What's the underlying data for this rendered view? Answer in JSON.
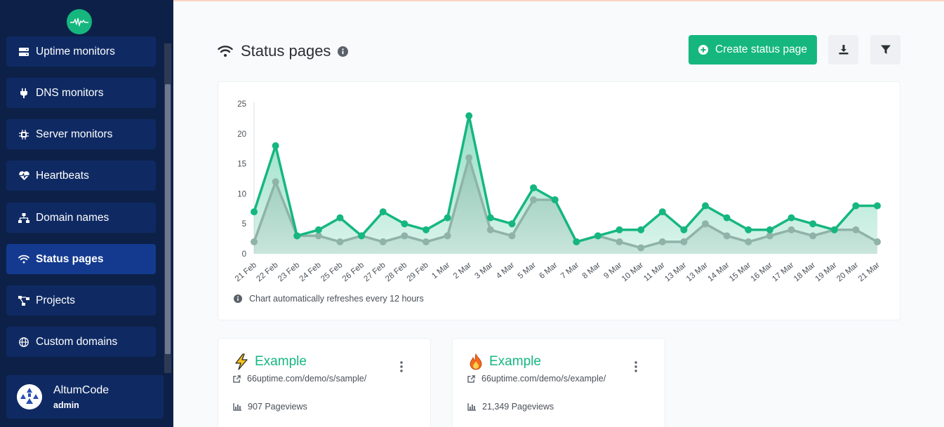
{
  "sidebar": {
    "items": [
      {
        "label": "Uptime monitors",
        "icon": "server-icon",
        "active": false
      },
      {
        "label": "DNS monitors",
        "icon": "plug-icon",
        "active": false
      },
      {
        "label": "Server monitors",
        "icon": "microchip-icon",
        "active": false
      },
      {
        "label": "Heartbeats",
        "icon": "heart-pulse-icon",
        "active": false
      },
      {
        "label": "Domain names",
        "icon": "network-icon",
        "active": false
      },
      {
        "label": "Status pages",
        "icon": "wifi-icon",
        "active": true
      },
      {
        "label": "Projects",
        "icon": "project-diagram-icon",
        "active": false
      },
      {
        "label": "Custom domains",
        "icon": "globe-icon",
        "active": false
      }
    ],
    "user": {
      "name": "AltumCode",
      "role": "admin"
    }
  },
  "header": {
    "title": "Status pages",
    "create_label": "Create status page"
  },
  "chart_note": "Chart automatically refreshes every 12 hours",
  "chart_data": {
    "type": "area",
    "categories": [
      "21 Feb",
      "22 Feb",
      "23 Feb",
      "24 Feb",
      "25 Feb",
      "26 Feb",
      "27 Feb",
      "28 Feb",
      "29 Feb",
      "1 Mar",
      "2 Mar",
      "3 Mar",
      "4 Mar",
      "5 Mar",
      "6 Mar",
      "7 Mar",
      "8 Mar",
      "9 Mar",
      "10 Mar",
      "11 Mar",
      "13 Mar",
      "13 Mar",
      "14 Mar",
      "15 Mar",
      "16 Mar",
      "17 Mar",
      "18 Mar",
      "19 Mar",
      "20 Mar",
      "21 Mar"
    ],
    "series": [
      {
        "values": [
          7,
          18,
          3,
          4,
          6,
          3,
          7,
          5,
          4,
          6,
          23,
          6,
          5,
          11,
          9,
          2,
          3,
          4,
          4,
          7,
          4,
          8,
          6,
          4,
          4,
          6,
          5,
          4,
          8,
          8
        ],
        "color": "#15b77f"
      },
      {
        "values": [
          2,
          12,
          3,
          3,
          2,
          3,
          2,
          3,
          2,
          3,
          16,
          4,
          3,
          9,
          9,
          2,
          3,
          2,
          1,
          2,
          2,
          5,
          3,
          2,
          3,
          4,
          3,
          4,
          4,
          2
        ],
        "color": "#8fb3a8"
      }
    ],
    "yticks": [
      0,
      5,
      10,
      15,
      20,
      25
    ],
    "ylim": [
      0,
      25
    ],
    "grid": false,
    "legend": "none"
  },
  "status_pages": [
    {
      "title": "Example",
      "emoji": "lightning-icon",
      "url": "66uptime.com/demo/s/sample/",
      "pageviews": "907 Pageviews"
    },
    {
      "title": "Example",
      "emoji": "fire-icon",
      "url": "66uptime.com/demo/s/example/",
      "pageviews": "21,349 Pageviews"
    }
  ],
  "colors": {
    "sidebar": "#0d2148",
    "accent": "#15b77f",
    "nav_item": "#0f2a63",
    "nav_active": "#133a8f"
  }
}
